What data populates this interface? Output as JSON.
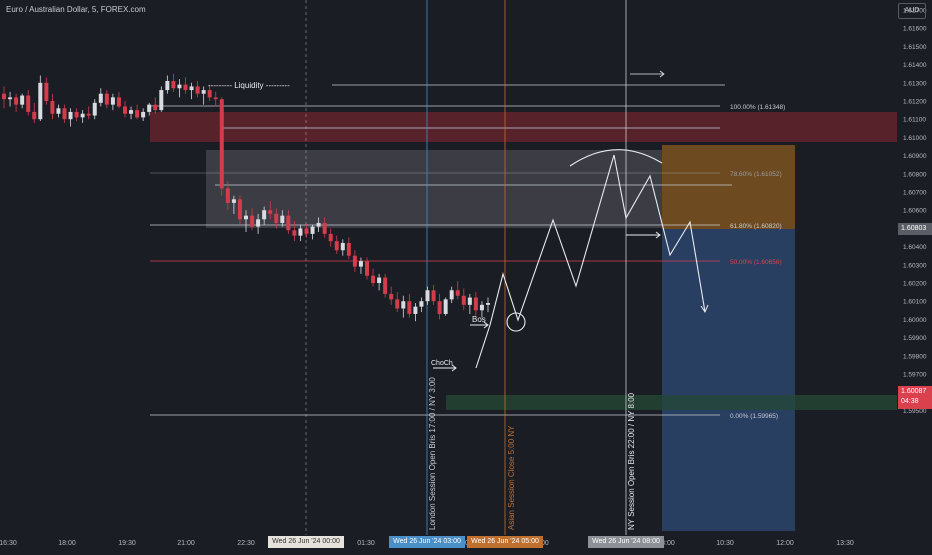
{
  "header": {
    "title": "Euro / Australian Dollar, 5, FOREX.com"
  },
  "currency_button": {
    "label": "AUD"
  },
  "price_axis": {
    "ticks": [
      "1.61700",
      "1.61600",
      "1.61500",
      "1.61400",
      "1.61300",
      "1.61200",
      "1.61100",
      "1.61000",
      "1.60900",
      "1.60800",
      "1.60700",
      "1.60600",
      "1.60500",
      "1.60400",
      "1.60300",
      "1.60200",
      "1.60100",
      "1.60000",
      "1.59900",
      "1.59800",
      "1.59700",
      "1.59600",
      "1.59500"
    ],
    "current_price": "1.60803",
    "last_price": "1.60087",
    "countdown": "04:38"
  },
  "time_axis": {
    "ticks": [
      "16:30",
      "18:00",
      "19:30",
      "21:00",
      "22:30",
      "01:30",
      "03:00",
      "05:00",
      "08:00",
      "10:30",
      "12:00",
      "13:30"
    ],
    "badges": [
      "Wed 26 Jun '24  00:00",
      "Wed 26 Jun '24  03:00",
      "Wed 26 Jun '24  05:00",
      "Wed 26 Jun '24  08:00"
    ]
  },
  "annotations": {
    "liquidity": "--------- Liquidity ---------",
    "bos": "Bos",
    "choch": "ChoCh"
  },
  "fib_levels": [
    {
      "label": "100.00% (1.61348)"
    },
    {
      "label": "78.60% (1.61052)"
    },
    {
      "label": "61.80% (1.60820)"
    },
    {
      "label": "50.00% (1.60656)"
    },
    {
      "label": "0.00% (1.59965)"
    }
  ],
  "sessions": [
    {
      "label": "London Session Open Bris 17:00 / NY 3:00"
    },
    {
      "label": "Asian Session Close 5:00 NY"
    },
    {
      "label": "NY Session Open Bris 22:00 / NY 8:00"
    }
  ],
  "colors": {
    "background": "#1b1d25",
    "bull": "#d8dbe2",
    "bear": "#d33c4b",
    "fib_50": "#d9414c",
    "london": "#4a8fc7",
    "asian": "#c0702e",
    "zone_red": "#8a2730",
    "zone_green": "#244a36",
    "zone_orange": "#8a5a1e",
    "zone_blue": "#2f4f7c"
  },
  "candles": [
    [
      1.6124,
      1.6128,
      1.6116,
      1.6121
    ],
    [
      1.6121,
      1.6125,
      1.6117,
      1.6122
    ],
    [
      1.6122,
      1.6124,
      1.6114,
      1.6118
    ],
    [
      1.6118,
      1.6124,
      1.6116,
      1.6123
    ],
    [
      1.6123,
      1.6126,
      1.6112,
      1.6114
    ],
    [
      1.6114,
      1.6119,
      1.6108,
      1.611
    ],
    [
      1.611,
      1.6134,
      1.6109,
      1.613
    ],
    [
      1.613,
      1.6133,
      1.6118,
      1.612
    ],
    [
      1.612,
      1.6124,
      1.611,
      1.6113
    ],
    [
      1.6113,
      1.6118,
      1.6111,
      1.6116
    ],
    [
      1.6116,
      1.6118,
      1.6108,
      1.611
    ],
    [
      1.611,
      1.6116,
      1.6106,
      1.6114
    ],
    [
      1.6114,
      1.6116,
      1.6109,
      1.6111
    ],
    [
      1.6111,
      1.6115,
      1.6108,
      1.6113
    ],
    [
      1.6113,
      1.6117,
      1.611,
      1.6112
    ],
    [
      1.6112,
      1.6121,
      1.611,
      1.6119
    ],
    [
      1.6119,
      1.6127,
      1.6117,
      1.6124
    ],
    [
      1.6124,
      1.6126,
      1.6116,
      1.6118
    ],
    [
      1.6118,
      1.6124,
      1.6115,
      1.6122
    ],
    [
      1.6122,
      1.6125,
      1.6116,
      1.6117
    ],
    [
      1.6117,
      1.612,
      1.6111,
      1.6113
    ],
    [
      1.6113,
      1.6117,
      1.611,
      1.6115
    ],
    [
      1.6115,
      1.6118,
      1.611,
      1.6111
    ],
    [
      1.6111,
      1.6116,
      1.6109,
      1.6114
    ],
    [
      1.6114,
      1.6119,
      1.6112,
      1.6118
    ],
    [
      1.6118,
      1.6122,
      1.6113,
      1.6115
    ],
    [
      1.6115,
      1.6128,
      1.6114,
      1.6126
    ],
    [
      1.6126,
      1.6134,
      1.6124,
      1.6131
    ],
    [
      1.6131,
      1.6135,
      1.6125,
      1.6127
    ],
    [
      1.6127,
      1.6132,
      1.6122,
      1.6129
    ],
    [
      1.6129,
      1.6133,
      1.6124,
      1.6126
    ],
    [
      1.6126,
      1.613,
      1.6121,
      1.6128
    ],
    [
      1.6128,
      1.6131,
      1.6122,
      1.6124
    ],
    [
      1.6124,
      1.6128,
      1.6118,
      1.6126
    ],
    [
      1.6126,
      1.6129,
      1.612,
      1.6122
    ],
    [
      1.6122,
      1.6125,
      1.6117,
      1.6121
    ],
    [
      1.6121,
      1.6122,
      1.6068,
      1.6072
    ],
    [
      1.6072,
      1.6076,
      1.606,
      1.6064
    ],
    [
      1.6064,
      1.6068,
      1.6058,
      1.6066
    ],
    [
      1.6066,
      1.6068,
      1.6052,
      1.6055
    ],
    [
      1.6055,
      1.606,
      1.6048,
      1.6057
    ],
    [
      1.6057,
      1.6061,
      1.6049,
      1.6051
    ],
    [
      1.6051,
      1.6058,
      1.6047,
      1.6055
    ],
    [
      1.6055,
      1.6062,
      1.6052,
      1.606
    ],
    [
      1.606,
      1.6065,
      1.6055,
      1.6058
    ],
    [
      1.6058,
      1.6061,
      1.605,
      1.6053
    ],
    [
      1.6053,
      1.606,
      1.6051,
      1.6057
    ],
    [
      1.6057,
      1.606,
      1.6047,
      1.6049
    ],
    [
      1.6049,
      1.6054,
      1.6043,
      1.6046
    ],
    [
      1.6046,
      1.6052,
      1.6043,
      1.605
    ],
    [
      1.605,
      1.6053,
      1.6045,
      1.6047
    ],
    [
      1.6047,
      1.6052,
      1.6044,
      1.6051
    ],
    [
      1.6051,
      1.6056,
      1.6048,
      1.6053
    ],
    [
      1.6053,
      1.6056,
      1.6045,
      1.6047
    ],
    [
      1.6047,
      1.605,
      1.604,
      1.6043
    ],
    [
      1.6043,
      1.6046,
      1.6036,
      1.6038
    ],
    [
      1.6038,
      1.6044,
      1.6035,
      1.6042
    ],
    [
      1.6042,
      1.6045,
      1.6033,
      1.6035
    ],
    [
      1.6035,
      1.6038,
      1.6026,
      1.6029
    ],
    [
      1.6029,
      1.6034,
      1.6025,
      1.6032
    ],
    [
      1.6032,
      1.6034,
      1.6022,
      1.6024
    ],
    [
      1.6024,
      1.6028,
      1.6018,
      1.602
    ],
    [
      1.602,
      1.6025,
      1.6016,
      1.6023
    ],
    [
      1.6023,
      1.6025,
      1.6012,
      1.6014
    ],
    [
      1.6014,
      1.6018,
      1.6008,
      1.6011
    ],
    [
      1.6011,
      1.6015,
      1.6004,
      1.6006
    ],
    [
      1.6006,
      1.6013,
      1.6001,
      1.601
    ],
    [
      1.601,
      1.6014,
      1.6001,
      1.6003
    ],
    [
      1.6003,
      1.6009,
      1.5999,
      1.6007
    ],
    [
      1.6007,
      1.6012,
      1.6004,
      1.601
    ],
    [
      1.601,
      1.6018,
      1.6008,
      1.6016
    ],
    [
      1.6016,
      1.6019,
      1.6008,
      1.601
    ],
    [
      1.601,
      1.6014,
      1.6,
      1.6003
    ],
    [
      1.6003,
      1.6012,
      1.6002,
      1.6011
    ],
    [
      1.6011,
      1.6018,
      1.6009,
      1.6016
    ],
    [
      1.6016,
      1.6021,
      1.6011,
      1.6013
    ],
    [
      1.6013,
      1.6017,
      1.6005,
      1.6008
    ],
    [
      1.6008,
      1.6014,
      1.6003,
      1.6012
    ],
    [
      1.6012,
      1.6015,
      1.6002,
      1.6005
    ],
    [
      1.6005,
      1.601,
      1.6001,
      1.6008
    ],
    [
      1.6008,
      1.6012,
      1.6004,
      1.6009
    ]
  ]
}
